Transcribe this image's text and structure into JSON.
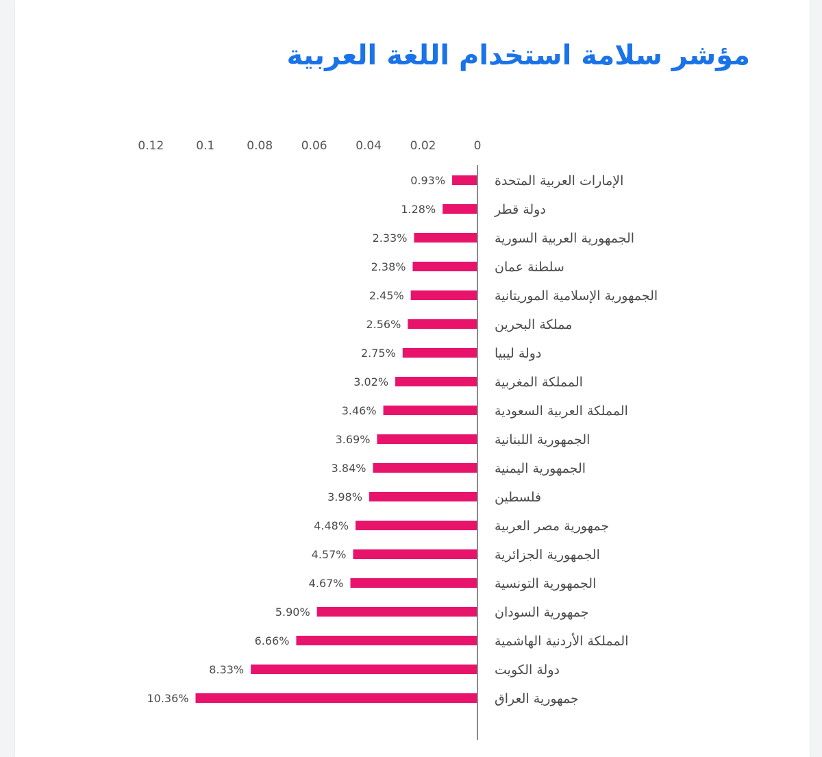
{
  "chart_data": {
    "type": "bar",
    "orientation": "horizontal",
    "title": "مؤشر سلامة استخدام اللغة العربية",
    "xlim": [
      0,
      0.12
    ],
    "x_ticks": [
      "0",
      "0.02",
      "0.04",
      "0.06",
      "0.08",
      "0.1",
      "0.12"
    ],
    "x_tick_values": [
      0,
      0.02,
      0.04,
      0.06,
      0.08,
      0.1,
      0.12
    ],
    "categories": [
      "الإمارات العربية المتحدة",
      "دولة قطر",
      "الجمهورية العربية السورية",
      "سلطنة عمان",
      "الجمهورية الإسلامية الموريتانية",
      "مملكة البحرين",
      "دولة ليبيا",
      "المملكة المغربية",
      "المملكة العربية السعودية",
      "الجمهورية اللبنانية",
      "الجمهورية اليمنية",
      "فلسطين",
      "جمهورية مصر العربية",
      "الجمهورية الجزائرية",
      "الجمهورية التونسية",
      "جمهورية السودان",
      "المملكة الأردنية الهاشمية",
      "دولة الكويت",
      "جمهورية العراق"
    ],
    "values": [
      0.0093,
      0.0128,
      0.0233,
      0.0238,
      0.0245,
      0.0256,
      0.0275,
      0.0302,
      0.0346,
      0.0369,
      0.0384,
      0.0398,
      0.0448,
      0.0457,
      0.0467,
      0.059,
      0.0666,
      0.0833,
      0.1036
    ],
    "data_labels": [
      "0.93%",
      "1.28%",
      "2.33%",
      "2.38%",
      "2.45%",
      "2.56%",
      "2.75%",
      "3.02%",
      "3.46%",
      "3.69%",
      "3.84%",
      "3.98%",
      "4.48%",
      "4.57%",
      "4.67%",
      "5.90%",
      "6.66%",
      "8.33%",
      "10.36%"
    ],
    "grid": false,
    "legend": "none",
    "colors": {
      "bar": "#e8146c",
      "title": "#1a73e8",
      "axis": "#8a8a8a",
      "text": "#4a4a4a"
    }
  }
}
